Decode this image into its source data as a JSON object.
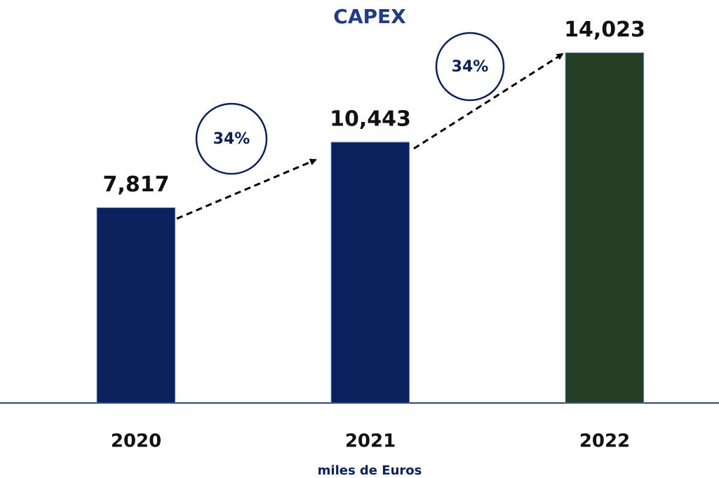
{
  "chart_data": {
    "type": "bar",
    "title": "CAPEX",
    "categories": [
      "2020",
      "2021",
      "2022"
    ],
    "values": [
      7817,
      10443,
      14023
    ],
    "value_labels": [
      "7,817",
      "10,443",
      "14,023"
    ],
    "colors": [
      "#0a215e",
      "#0a215e",
      "#243f26"
    ],
    "ylim": [
      0,
      16000
    ],
    "x_label": "miles de Euros",
    "annotations": [
      "34%",
      "34%"
    ]
  }
}
